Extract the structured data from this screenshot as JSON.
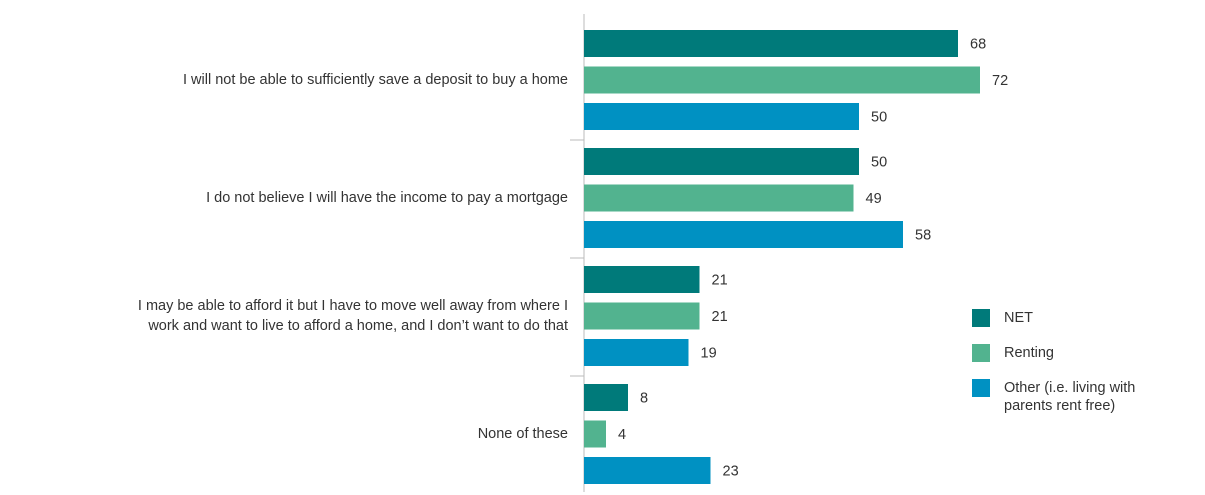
{
  "chart_data": {
    "type": "bar",
    "orientation": "horizontal",
    "categories": [
      "I will not be able to sufficiently save a deposit to buy a home",
      "I do not believe I will have the income to pay a mortgage",
      "I may be able to afford it but I have to move well away from where I\nwork and want to live to afford a home, and I don’t want to do that",
      "None of these"
    ],
    "series": [
      {
        "name": "NET",
        "color": "#007a7a",
        "values": [
          68,
          50,
          21,
          8
        ]
      },
      {
        "name": "Renting",
        "color": "#52b38f",
        "values": [
          72,
          49,
          21,
          4
        ]
      },
      {
        "name": "Other (i.e. living with\nparents rent free)",
        "color": "#0091c2",
        "values": [
          50,
          58,
          19,
          23
        ]
      }
    ],
    "xlim": [
      0,
      100
    ],
    "legend": "right"
  }
}
